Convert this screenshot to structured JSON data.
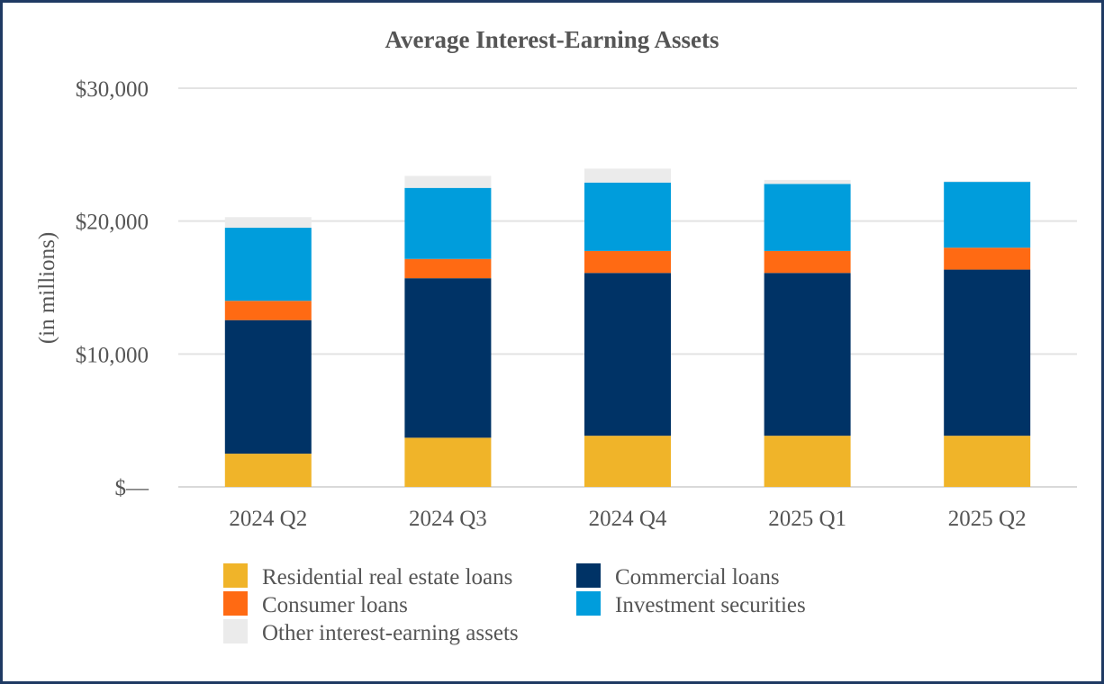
{
  "chart_data": {
    "type": "bar",
    "stacked": true,
    "title": "Average Interest-Earning Assets",
    "xlabel": "",
    "ylabel": "(in millions)",
    "ylim": [
      0,
      30000
    ],
    "y_ticks": [
      0,
      10000,
      20000,
      30000
    ],
    "y_tick_labels": [
      "$—",
      "$10,000",
      "$20,000",
      "$30,000"
    ],
    "grid": true,
    "legend_position": "bottom",
    "categories": [
      "2024 Q2",
      "2024 Q3",
      "2024 Q4",
      "2025 Q1",
      "2025 Q2"
    ],
    "series": [
      {
        "name": "Residential real estate loans",
        "color": "#f0b429",
        "values": [
          2500,
          3700,
          3850,
          3850,
          3850
        ]
      },
      {
        "name": "Commercial loans",
        "color": "#003366",
        "values": [
          10050,
          12000,
          12250,
          12250,
          12500
        ]
      },
      {
        "name": "Consumer loans",
        "color": "#ff6a13",
        "values": [
          1450,
          1450,
          1650,
          1650,
          1650
        ]
      },
      {
        "name": "Investment securities",
        "color": "#009ddc",
        "values": [
          5500,
          5350,
          5150,
          5050,
          4950
        ]
      },
      {
        "name": "Other interest-earning assets",
        "color": "#ebebeb",
        "values": [
          800,
          900,
          1050,
          300,
          50
        ]
      }
    ]
  }
}
